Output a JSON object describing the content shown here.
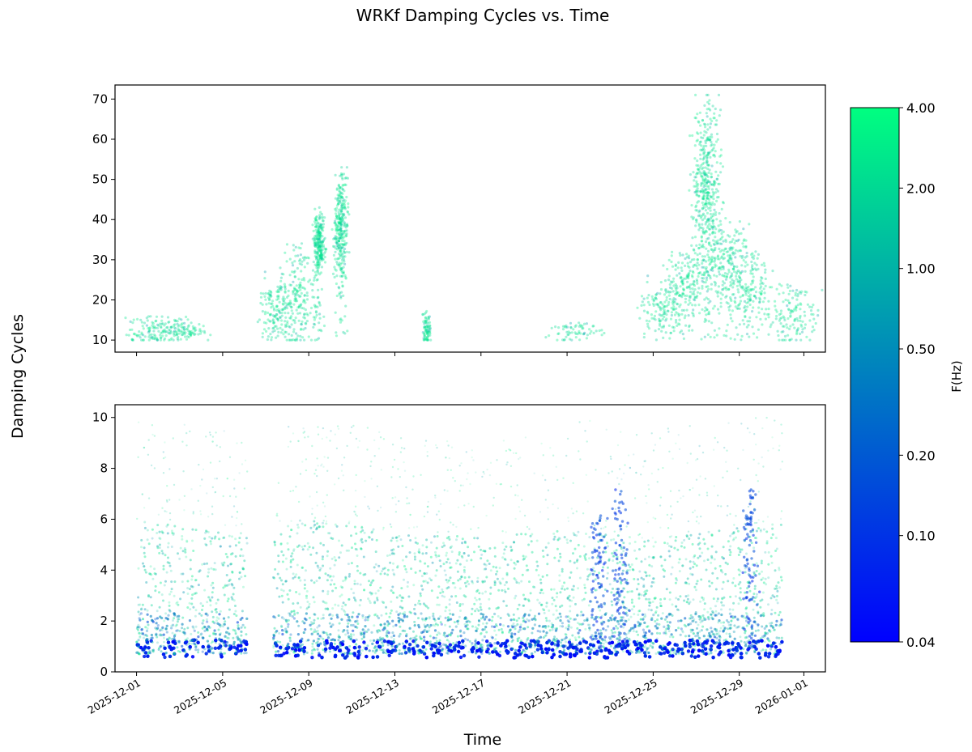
{
  "chart_data": {
    "type": "scatter",
    "title": "WRKf Damping Cycles vs. Time",
    "xlabel": "Time",
    "ylabel": "Damping Cycles",
    "x_range": [
      "2025-11-30",
      "2026-01-02"
    ],
    "x_ticks": [
      "2025-12-01",
      "2025-12-05",
      "2025-12-09",
      "2025-12-13",
      "2025-12-17",
      "2025-12-21",
      "2025-12-25",
      "2025-12-29",
      "2026-01-01"
    ],
    "grid": false,
    "panels": [
      {
        "name": "upper",
        "ylim": [
          7,
          73.5
        ],
        "y_ticks": [
          10,
          20,
          30,
          40,
          50,
          60,
          70
        ]
      },
      {
        "name": "lower",
        "ylim": [
          0,
          10.5
        ],
        "y_ticks": [
          0,
          2,
          4,
          6,
          8,
          10
        ]
      }
    ],
    "colorbar": {
      "label": "F(Hz)",
      "scale": "log",
      "range": [
        0.04,
        4.0
      ],
      "ticks": [
        "4.00",
        "2.00",
        "1.00",
        "0.50",
        "0.20",
        "0.10",
        "0.04"
      ],
      "colormap": [
        "#0000ff",
        "#00ff80"
      ]
    },
    "upper_clusters": [
      {
        "date": "2025-12-01",
        "center": 12,
        "top": 16,
        "spread": 0.5
      },
      {
        "date": "2025-12-02",
        "center": 12,
        "top": 16,
        "spread": 0.5
      },
      {
        "date": "2025-12-03",
        "center": 12,
        "top": 15,
        "spread": 0.5
      },
      {
        "date": "2025-12-07",
        "center": 18,
        "top": 26,
        "spread": 0.35
      },
      {
        "date": "2025-12-08",
        "center": 20,
        "top": 34,
        "spread": 0.4
      },
      {
        "date": "2025-12-09",
        "center": 34,
        "top": 42,
        "spread": 0.12
      },
      {
        "date": "2025-12-10",
        "center": 38,
        "top": 52,
        "spread": 0.15
      },
      {
        "date": "2025-12-14",
        "center": 12,
        "top": 17,
        "spread": 0.1
      },
      {
        "date": "2025-12-21",
        "center": 12,
        "top": 15,
        "spread": 0.6
      },
      {
        "date": "2025-12-25",
        "center": 18,
        "top": 25,
        "spread": 0.5
      },
      {
        "date": "2025-12-26",
        "center": 24,
        "top": 32,
        "spread": 0.5
      },
      {
        "date": "2025-12-27",
        "center": 48,
        "top": 70,
        "spread": 0.3
      },
      {
        "date": "2025-12-28",
        "center": 30,
        "top": 40,
        "spread": 0.6
      },
      {
        "date": "2025-12-29",
        "center": 22,
        "top": 32,
        "spread": 0.6
      },
      {
        "date": "2025-12-31",
        "center": 16,
        "top": 24,
        "spread": 0.5
      }
    ],
    "lower_density": [
      {
        "date": "2025-12-01",
        "cycles_low": 0.7,
        "cycles_high": 6.0,
        "peak": 10.0
      },
      {
        "date": "2025-12-05",
        "cycles_low": 0.7,
        "cycles_high": 5.5,
        "peak": 9.5
      },
      {
        "date": "2025-12-09",
        "cycles_low": 0.7,
        "cycles_high": 6.0,
        "peak": 10.0
      },
      {
        "date": "2025-12-13",
        "cycles_low": 0.7,
        "cycles_high": 5.5,
        "peak": 9.5
      },
      {
        "date": "2025-12-17",
        "cycles_low": 0.7,
        "cycles_high": 5.3,
        "peak": 9.0
      },
      {
        "date": "2025-12-21",
        "cycles_low": 0.7,
        "cycles_high": 5.6,
        "peak": 10.0
      },
      {
        "date": "2025-12-25",
        "cycles_low": 0.7,
        "cycles_high": 5.2,
        "peak": 9.5
      },
      {
        "date": "2025-12-29",
        "cycles_low": 0.7,
        "cycles_high": 5.8,
        "peak": 10.0
      }
    ],
    "lower_gap": [
      "2025-12-06",
      "2025-12-07"
    ],
    "low_frequency_spikes": [
      {
        "date": "2025-12-22",
        "top": 6.2
      },
      {
        "date": "2025-12-23",
        "top": 7.3
      },
      {
        "date": "2025-12-29",
        "top": 7.2
      }
    ]
  }
}
